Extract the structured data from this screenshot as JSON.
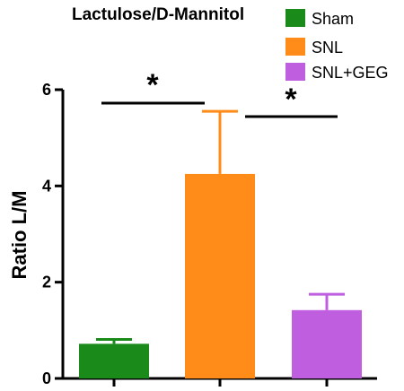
{
  "chart_data": {
    "type": "bar",
    "title": "Lactulose/D-Mannitol",
    "ylabel": "Ratio L/M",
    "xlabel": "",
    "ylim": [
      0,
      6
    ],
    "yticks": [
      "0",
      "2",
      "4",
      "6"
    ],
    "categories": [
      "Sham",
      "SNL",
      "SNL+GEG"
    ],
    "values": [
      0.72,
      4.25,
      1.42
    ],
    "errors": [
      0.09,
      1.3,
      0.33
    ],
    "colors": [
      "#1a8a1a",
      "#ff8c19",
      "#bf5fe0"
    ],
    "legend": [
      {
        "label": "Sham",
        "color": "#1a8a1a"
      },
      {
        "label": "SNL",
        "color": "#ff8c19"
      },
      {
        "label": "SNL+GEG",
        "color": "#bf5fe0"
      }
    ],
    "legend_position": "top-right",
    "significance": [
      {
        "between": [
          "Sham",
          "SNL"
        ],
        "label": "*"
      },
      {
        "between": [
          "SNL",
          "SNL+GEG"
        ],
        "label": "*"
      }
    ],
    "grid": false
  }
}
